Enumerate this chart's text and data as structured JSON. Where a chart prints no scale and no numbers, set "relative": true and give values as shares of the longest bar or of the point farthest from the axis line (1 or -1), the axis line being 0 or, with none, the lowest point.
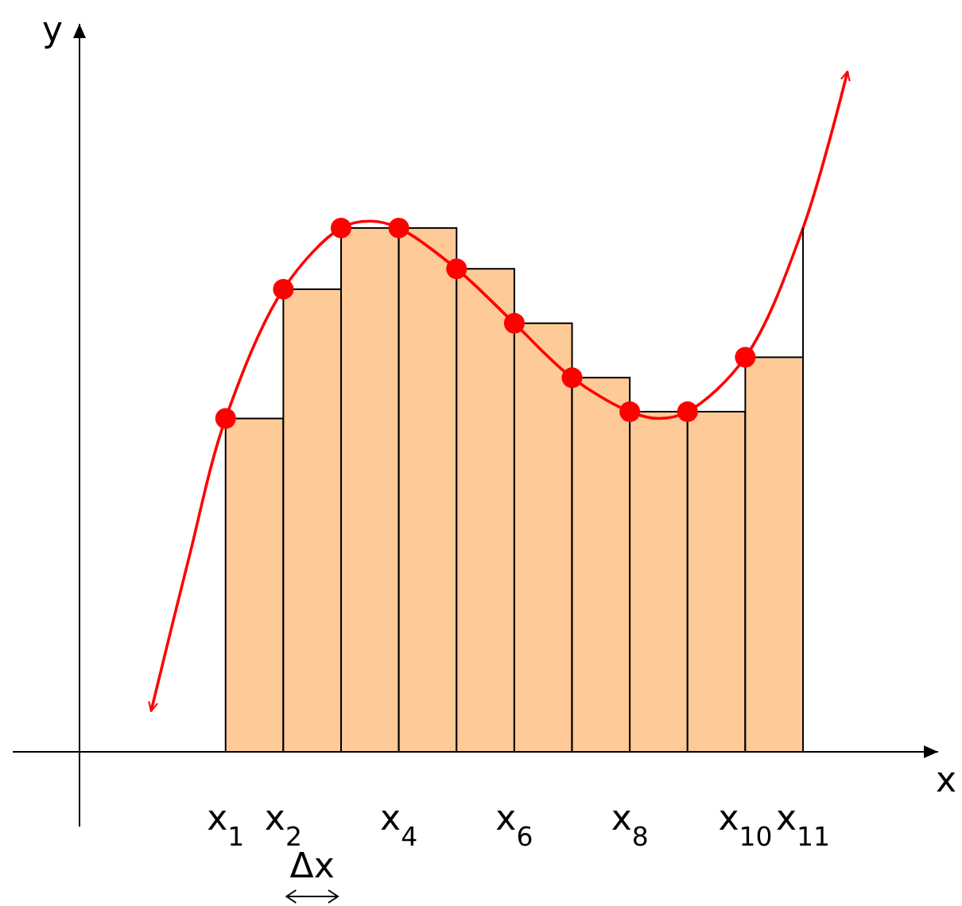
{
  "chart_data": {
    "type": "bar",
    "xlabel": "x",
    "ylabel": "y",
    "relative": true,
    "xlim": [
      -1.53,
      13.34
    ],
    "xticks": [
      {
        "value": 1,
        "label": "x$_{1}$"
      },
      {
        "value": 2,
        "label": "x$_{2}$"
      },
      {
        "value": 4,
        "label": "x$_{4}$"
      },
      {
        "value": 6,
        "label": "x$_{6}$"
      },
      {
        "value": 8,
        "label": "x$_{8}$"
      },
      {
        "value": 10,
        "label": "x$_{10}$"
      },
      {
        "value": 11,
        "label": "x$_{11}$"
      }
    ],
    "grid": false,
    "series": [
      {
        "color": "#fdca98",
        "x": [
          1.5,
          2.5,
          3.5,
          4.5,
          5.5,
          6.5,
          7.5,
          8.5,
          9.5,
          10.5
        ],
        "values": [
          0.49,
          0.68,
          0.77,
          0.77,
          0.71,
          0.63,
          0.55,
          0.5,
          0.5,
          0.58
        ]
      },
      {
        "type": "line",
        "color": "#ff0000",
        "marker": "none",
        "x": [
          -0.29,
          0.35,
          1,
          2,
          3,
          3.5,
          4,
          5,
          6,
          7,
          8,
          8.5,
          9,
          10,
          11,
          11.77
        ],
        "values": [
          0.06,
          0.28,
          0.49,
          0.68,
          0.77,
          0.78,
          0.77,
          0.71,
          0.63,
          0.55,
          0.5,
          0.49,
          0.5,
          0.58,
          0.77,
          1.0
        ]
      },
      {
        "type": "scatter",
        "color": "#ff0000",
        "marker": "circle",
        "x": [
          1,
          2,
          3,
          4,
          5,
          6,
          7,
          8,
          9,
          10
        ],
        "values": [
          0.49,
          0.68,
          0.77,
          0.77,
          0.71,
          0.63,
          0.55,
          0.5,
          0.5,
          0.58
        ]
      }
    ],
    "annotations": [
      "Δx"
    ]
  }
}
